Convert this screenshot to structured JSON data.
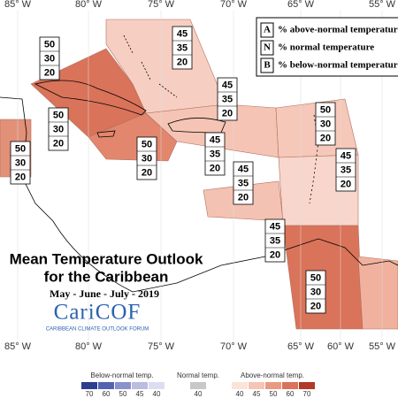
{
  "lon_labels": [
    "85° W",
    "80° W",
    "75° W",
    "70° W",
    "65° W",
    "60° W",
    "55° W"
  ],
  "key": [
    {
      "letter": "A",
      "text": "% above-normal temperature"
    },
    {
      "letter": "N",
      "text": "% normal temperature"
    },
    {
      "letter": "B",
      "text": "% below-normal temperature"
    }
  ],
  "title": {
    "line1": "Mean Temperature Outlook",
    "line2": "for the Caribbean",
    "period": "May - June - July - 2019",
    "logo": "CariCOF",
    "logo_sub": "CARIBBEAN CLIMATE OUTLOOK FORUM"
  },
  "zones": [
    {
      "above": 50,
      "normal": 30,
      "below": 20
    },
    {
      "above": 45,
      "normal": 35,
      "below": 20
    },
    {
      "above": 50,
      "normal": 30,
      "below": 20
    },
    {
      "above": 50,
      "normal": 30,
      "below": 20
    },
    {
      "above": 45,
      "normal": 35,
      "below": 20
    },
    {
      "above": 50,
      "normal": 30,
      "below": 20
    },
    {
      "above": 50,
      "normal": 30,
      "below": 20
    },
    {
      "above": 45,
      "normal": 35,
      "below": 20
    },
    {
      "above": 45,
      "normal": 35,
      "below": 20
    },
    {
      "above": 45,
      "normal": 35,
      "below": 20
    },
    {
      "above": 45,
      "normal": 35,
      "below": 20
    },
    {
      "above": 50,
      "normal": 30,
      "below": 20
    }
  ],
  "scale": {
    "below_title": "Below-normal temp.",
    "below": [
      "70",
      "60",
      "50",
      "45",
      "40"
    ],
    "normal_title": "Normal temp.",
    "normal": [
      "40"
    ],
    "above_title": "Above-normal temp.",
    "above": [
      "40",
      "45",
      "50",
      "60",
      "70"
    ]
  }
}
